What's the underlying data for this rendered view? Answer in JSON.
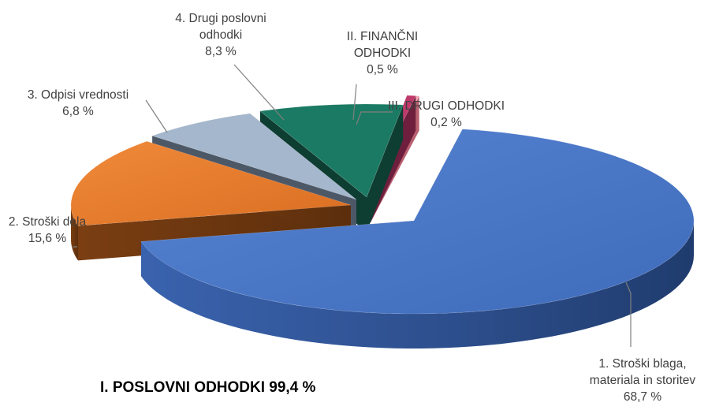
{
  "chart_data": {
    "type": "pie",
    "variant": "exploded 3d pie",
    "group_label": "I. POSLOVNI ODHODKI 99,4 %",
    "slices": [
      {
        "key": "s1",
        "label_lines": [
          "1. Stroški blaga,",
          "materiala in storitev",
          "68,7 %"
        ],
        "value": 68.7,
        "color": "#4472C4"
      },
      {
        "key": "s2",
        "label_lines": [
          "2. Stroški dela",
          "15,6 %"
        ],
        "value": 15.6,
        "color": "#ED7D31"
      },
      {
        "key": "s3",
        "label_lines": [
          "3. Odpisi vrednosti",
          "6,8 %"
        ],
        "value": 6.8,
        "color": "#A5B7CC"
      },
      {
        "key": "s4",
        "label_lines": [
          "4. Drugi poslovni",
          "odhodki",
          "8,3 %"
        ],
        "value": 8.3,
        "color": "#1B7A63"
      },
      {
        "key": "s5",
        "label_lines": [
          "II. FINANČNI",
          "ODHODKI",
          "0,5 %"
        ],
        "value": 0.5,
        "color": "#C0396B"
      },
      {
        "key": "s6",
        "label_lines": [
          "III. DRUGI ODHODKI",
          "0,2 %"
        ],
        "value": 0.2,
        "color": "#F4A6B4"
      }
    ]
  }
}
